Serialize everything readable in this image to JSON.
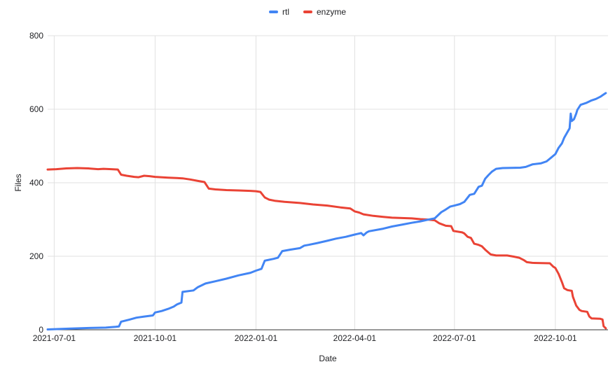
{
  "page": {
    "background": "#ffffff"
  },
  "legend": {
    "position": "top",
    "items": [
      {
        "label": "rtl",
        "color": "#4285f4"
      },
      {
        "label": "enzyme",
        "color": "#ea4335"
      }
    ]
  },
  "colors": {
    "gridline": "#e1e1e1",
    "axis_line": "#333333",
    "tick_text": "#202124"
  },
  "chart_data": {
    "type": "line",
    "title": "",
    "xlabel": "Date",
    "ylabel": "Files",
    "legend_position": "top",
    "grid": true,
    "ylim": [
      0,
      800
    ],
    "y_ticks": [
      0,
      200,
      400,
      600,
      800
    ],
    "x_ticks": [
      "2021-07-01",
      "2021-10-01",
      "2022-01-01",
      "2022-04-01",
      "2022-07-01",
      "2022-10-01"
    ],
    "x_domain": [
      "2021-06-25",
      "2022-11-18"
    ],
    "series": [
      {
        "name": "rtl",
        "color": "#4285f4",
        "points": [
          [
            "2021-06-25",
            1
          ],
          [
            "2021-07-14",
            3
          ],
          [
            "2021-08-02",
            5
          ],
          [
            "2021-08-17",
            6
          ],
          [
            "2021-08-26",
            8
          ],
          [
            "2021-08-29",
            9
          ],
          [
            "2021-08-31",
            22
          ],
          [
            "2021-09-08",
            28
          ],
          [
            "2021-09-14",
            33
          ],
          [
            "2021-09-21",
            36
          ],
          [
            "2021-09-29",
            39
          ],
          [
            "2021-10-01",
            47
          ],
          [
            "2021-10-07",
            51
          ],
          [
            "2021-10-13",
            57
          ],
          [
            "2021-10-18",
            63
          ],
          [
            "2021-10-21",
            69
          ],
          [
            "2021-10-25",
            74
          ],
          [
            "2021-10-26",
            103
          ],
          [
            "2021-11-05",
            107
          ],
          [
            "2021-11-09",
            116
          ],
          [
            "2021-11-16",
            126
          ],
          [
            "2021-11-25",
            132
          ],
          [
            "2021-12-05",
            139
          ],
          [
            "2021-12-16",
            148
          ],
          [
            "2021-12-27",
            155
          ],
          [
            "2022-01-01",
            161
          ],
          [
            "2022-01-06",
            166
          ],
          [
            "2022-01-09",
            188
          ],
          [
            "2022-01-17",
            193
          ],
          [
            "2022-01-21",
            196
          ],
          [
            "2022-01-25",
            214
          ],
          [
            "2022-02-01",
            218
          ],
          [
            "2022-02-10",
            222
          ],
          [
            "2022-02-14",
            229
          ],
          [
            "2022-02-18",
            231
          ],
          [
            "2022-02-26",
            236
          ],
          [
            "2022-03-07",
            242
          ],
          [
            "2022-03-15",
            248
          ],
          [
            "2022-03-24",
            253
          ],
          [
            "2022-04-01",
            259
          ],
          [
            "2022-04-07",
            263
          ],
          [
            "2022-04-09",
            257
          ],
          [
            "2022-04-12",
            265
          ],
          [
            "2022-04-14",
            268
          ],
          [
            "2022-04-27",
            275
          ],
          [
            "2022-05-05",
            281
          ],
          [
            "2022-05-14",
            286
          ],
          [
            "2022-05-23",
            291
          ],
          [
            "2022-05-31",
            295
          ],
          [
            "2022-06-06",
            299
          ],
          [
            "2022-06-13",
            303
          ],
          [
            "2022-06-19",
            320
          ],
          [
            "2022-06-23",
            327
          ],
          [
            "2022-06-27",
            335
          ],
          [
            "2022-07-01",
            338
          ],
          [
            "2022-07-06",
            342
          ],
          [
            "2022-07-10",
            348
          ],
          [
            "2022-07-15",
            367
          ],
          [
            "2022-07-19",
            370
          ],
          [
            "2022-07-23",
            389
          ],
          [
            "2022-07-26",
            392
          ],
          [
            "2022-07-29",
            411
          ],
          [
            "2022-08-01",
            421
          ],
          [
            "2022-08-04",
            430
          ],
          [
            "2022-08-08",
            438
          ],
          [
            "2022-08-14",
            440
          ],
          [
            "2022-08-30",
            441
          ],
          [
            "2022-09-04",
            443
          ],
          [
            "2022-09-10",
            450
          ],
          [
            "2022-09-18",
            453
          ],
          [
            "2022-09-23",
            458
          ],
          [
            "2022-09-27",
            468
          ],
          [
            "2022-10-01",
            478
          ],
          [
            "2022-10-04",
            495
          ],
          [
            "2022-10-07",
            507
          ],
          [
            "2022-10-09",
            522
          ],
          [
            "2022-10-12",
            538
          ],
          [
            "2022-10-14",
            548
          ],
          [
            "2022-10-15",
            588
          ],
          [
            "2022-10-16",
            568
          ],
          [
            "2022-10-18",
            573
          ],
          [
            "2022-10-20",
            588
          ],
          [
            "2022-10-21",
            598
          ],
          [
            "2022-10-24",
            612
          ],
          [
            "2022-10-29",
            617
          ],
          [
            "2022-11-03",
            624
          ],
          [
            "2022-11-07",
            628
          ],
          [
            "2022-11-11",
            634
          ],
          [
            "2022-11-14",
            640
          ],
          [
            "2022-11-16",
            644
          ]
        ]
      },
      {
        "name": "enzyme",
        "color": "#ea4335",
        "points": [
          [
            "2021-06-25",
            436
          ],
          [
            "2021-07-03",
            437
          ],
          [
            "2021-07-12",
            439
          ],
          [
            "2021-07-22",
            440
          ],
          [
            "2021-08-01",
            439
          ],
          [
            "2021-08-10",
            437
          ],
          [
            "2021-08-15",
            438
          ],
          [
            "2021-08-22",
            437
          ],
          [
            "2021-08-28",
            436
          ],
          [
            "2021-08-31",
            422
          ],
          [
            "2021-09-05",
            419
          ],
          [
            "2021-09-12",
            416
          ],
          [
            "2021-09-16",
            415
          ],
          [
            "2021-09-21",
            419
          ],
          [
            "2021-09-26",
            418
          ],
          [
            "2021-10-01",
            416
          ],
          [
            "2021-10-13",
            414
          ],
          [
            "2021-10-26",
            412
          ],
          [
            "2021-11-02",
            409
          ],
          [
            "2021-11-09",
            405
          ],
          [
            "2021-11-15",
            402
          ],
          [
            "2021-11-19",
            384
          ],
          [
            "2021-11-25",
            382
          ],
          [
            "2021-12-05",
            380
          ],
          [
            "2021-12-16",
            379
          ],
          [
            "2021-12-27",
            378
          ],
          [
            "2022-01-01",
            377
          ],
          [
            "2022-01-05",
            375
          ],
          [
            "2022-01-09",
            360
          ],
          [
            "2022-01-13",
            354
          ],
          [
            "2022-01-18",
            351
          ],
          [
            "2022-01-27",
            348
          ],
          [
            "2022-02-10",
            345
          ],
          [
            "2022-02-22",
            341
          ],
          [
            "2022-03-07",
            338
          ],
          [
            "2022-03-19",
            333
          ],
          [
            "2022-03-28",
            330
          ],
          [
            "2022-04-01",
            322
          ],
          [
            "2022-04-05",
            319
          ],
          [
            "2022-04-09",
            314
          ],
          [
            "2022-04-18",
            310
          ],
          [
            "2022-04-27",
            307
          ],
          [
            "2022-05-05",
            305
          ],
          [
            "2022-05-14",
            304
          ],
          [
            "2022-05-23",
            303
          ],
          [
            "2022-05-31",
            301
          ],
          [
            "2022-06-06",
            300
          ],
          [
            "2022-06-13",
            298
          ],
          [
            "2022-06-17",
            290
          ],
          [
            "2022-06-23",
            283
          ],
          [
            "2022-06-28",
            282
          ],
          [
            "2022-06-30",
            269
          ],
          [
            "2022-07-08",
            265
          ],
          [
            "2022-07-10",
            262
          ],
          [
            "2022-07-13",
            253
          ],
          [
            "2022-07-16",
            250
          ],
          [
            "2022-07-19",
            234
          ],
          [
            "2022-07-23",
            231
          ],
          [
            "2022-07-26",
            227
          ],
          [
            "2022-07-29",
            218
          ],
          [
            "2022-08-03",
            205
          ],
          [
            "2022-08-08",
            202
          ],
          [
            "2022-08-18",
            202
          ],
          [
            "2022-08-24",
            199
          ],
          [
            "2022-08-29",
            196
          ],
          [
            "2022-09-02",
            190
          ],
          [
            "2022-09-05",
            184
          ],
          [
            "2022-09-10",
            182
          ],
          [
            "2022-09-26",
            181
          ],
          [
            "2022-09-29",
            172
          ],
          [
            "2022-10-01",
            168
          ],
          [
            "2022-10-04",
            152
          ],
          [
            "2022-10-07",
            130
          ],
          [
            "2022-10-09",
            113
          ],
          [
            "2022-10-12",
            108
          ],
          [
            "2022-10-16",
            106
          ],
          [
            "2022-10-17",
            90
          ],
          [
            "2022-10-20",
            66
          ],
          [
            "2022-10-23",
            54
          ],
          [
            "2022-10-25",
            51
          ],
          [
            "2022-10-30",
            49
          ],
          [
            "2022-11-01",
            36
          ],
          [
            "2022-11-03",
            31
          ],
          [
            "2022-11-11",
            30
          ],
          [
            "2022-11-13",
            28
          ],
          [
            "2022-11-14",
            10
          ],
          [
            "2022-11-16",
            4
          ]
        ]
      }
    ]
  }
}
